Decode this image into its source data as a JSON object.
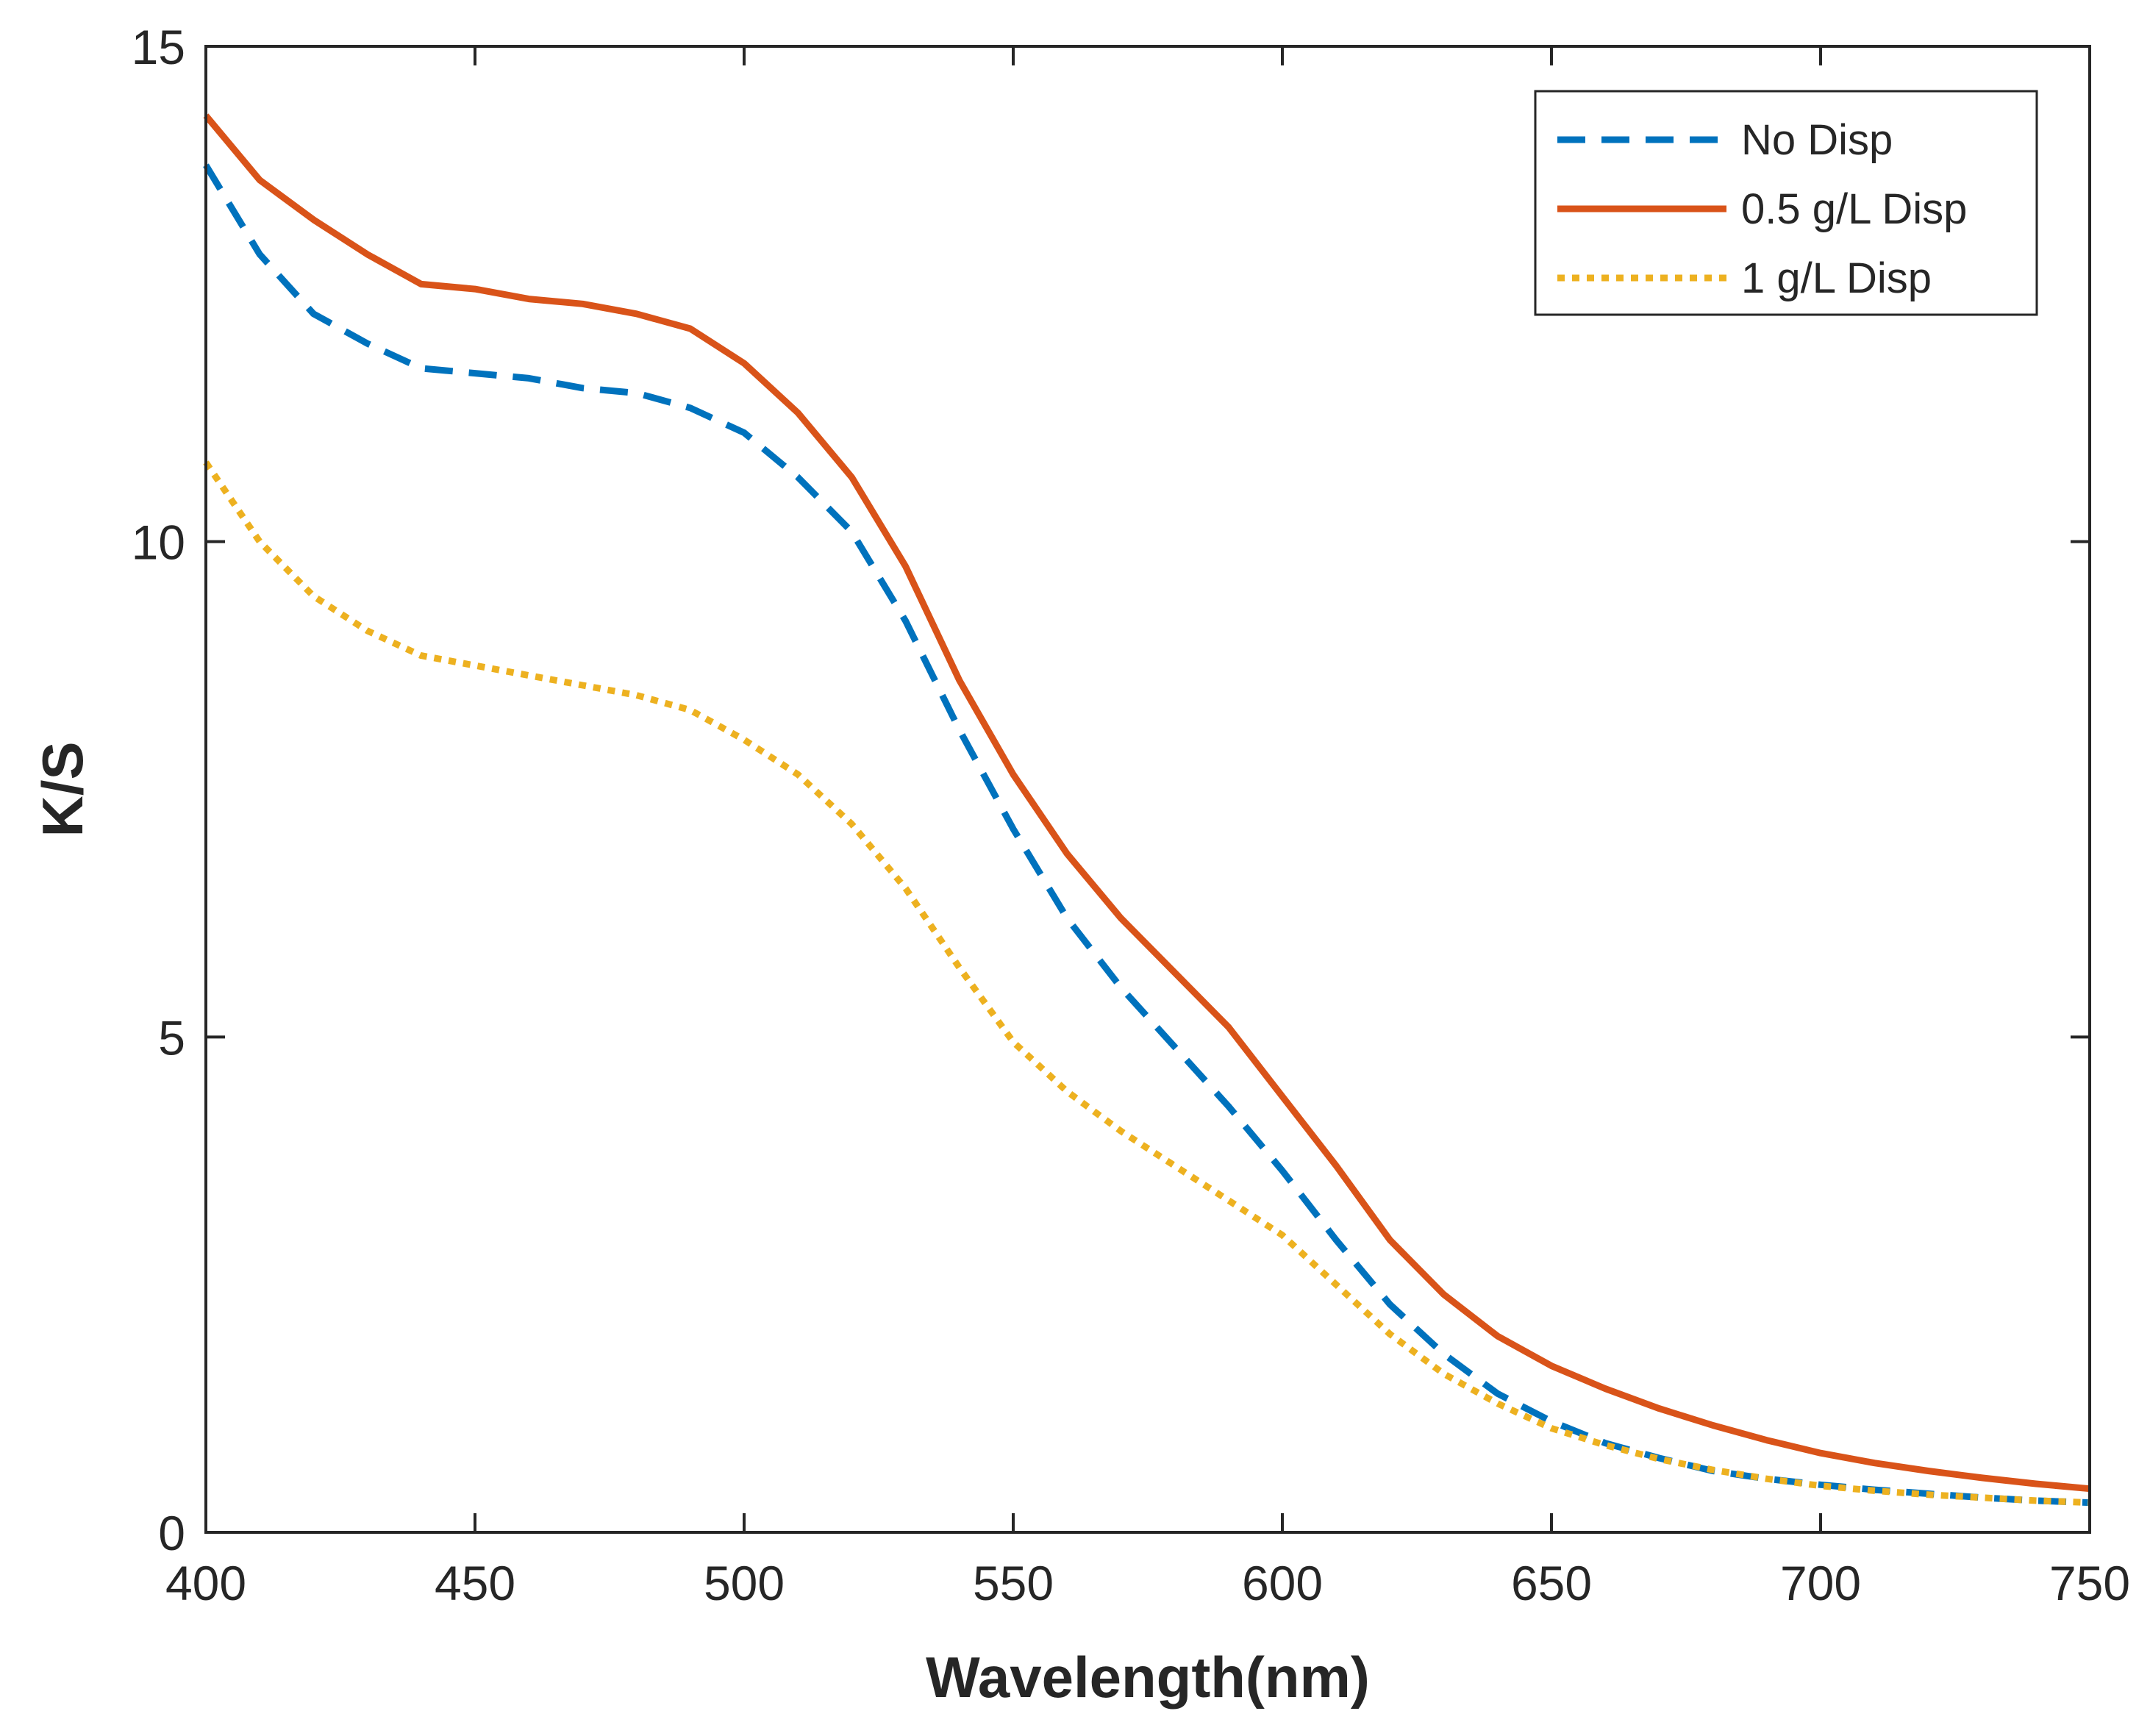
{
  "chart_data": {
    "type": "line",
    "title": "",
    "xlabel": "Wavelength(nm)",
    "ylabel": "K/S",
    "xlim": [
      400,
      750
    ],
    "ylim": [
      0,
      15
    ],
    "xticks": [
      400,
      450,
      500,
      550,
      600,
      650,
      700,
      750
    ],
    "yticks": [
      0,
      5,
      10,
      15
    ],
    "grid": false,
    "legend_position": "top-right",
    "x": [
      400,
      410,
      420,
      430,
      440,
      450,
      460,
      470,
      480,
      490,
      500,
      510,
      520,
      530,
      540,
      550,
      560,
      570,
      580,
      590,
      600,
      610,
      620,
      630,
      640,
      650,
      660,
      670,
      680,
      690,
      700,
      710,
      720,
      730,
      740,
      750
    ],
    "series": [
      {
        "name": "No Disp",
        "color": "#0072BD",
        "style": "dashed",
        "values": [
          13.8,
          12.9,
          12.3,
          12.0,
          11.75,
          11.7,
          11.65,
          11.55,
          11.5,
          11.35,
          11.1,
          10.65,
          10.1,
          9.2,
          8.1,
          7.1,
          6.2,
          5.5,
          4.9,
          4.3,
          3.65,
          2.95,
          2.3,
          1.8,
          1.4,
          1.12,
          0.9,
          0.75,
          0.62,
          0.54,
          0.48,
          0.43,
          0.39,
          0.35,
          0.32,
          0.3
        ]
      },
      {
        "name": "0.5 g/L Disp",
        "color": "#D95319",
        "style": "solid",
        "values": [
          14.3,
          13.65,
          13.25,
          12.9,
          12.6,
          12.55,
          12.45,
          12.4,
          12.3,
          12.15,
          11.8,
          11.3,
          10.65,
          9.75,
          8.6,
          7.65,
          6.85,
          6.2,
          5.65,
          5.1,
          4.4,
          3.7,
          2.95,
          2.4,
          1.98,
          1.68,
          1.45,
          1.25,
          1.08,
          0.93,
          0.8,
          0.7,
          0.62,
          0.55,
          0.49,
          0.44
        ]
      },
      {
        "name": "1 g/L Disp",
        "color": "#EDB120",
        "style": "dotted",
        "values": [
          10.8,
          10.0,
          9.45,
          9.1,
          8.85,
          8.75,
          8.65,
          8.55,
          8.45,
          8.3,
          8.0,
          7.65,
          7.15,
          6.5,
          5.7,
          4.95,
          4.45,
          4.05,
          3.7,
          3.35,
          3.0,
          2.5,
          2.0,
          1.6,
          1.3,
          1.05,
          0.88,
          0.74,
          0.63,
          0.54,
          0.47,
          0.42,
          0.38,
          0.35,
          0.32,
          0.3
        ]
      }
    ]
  }
}
